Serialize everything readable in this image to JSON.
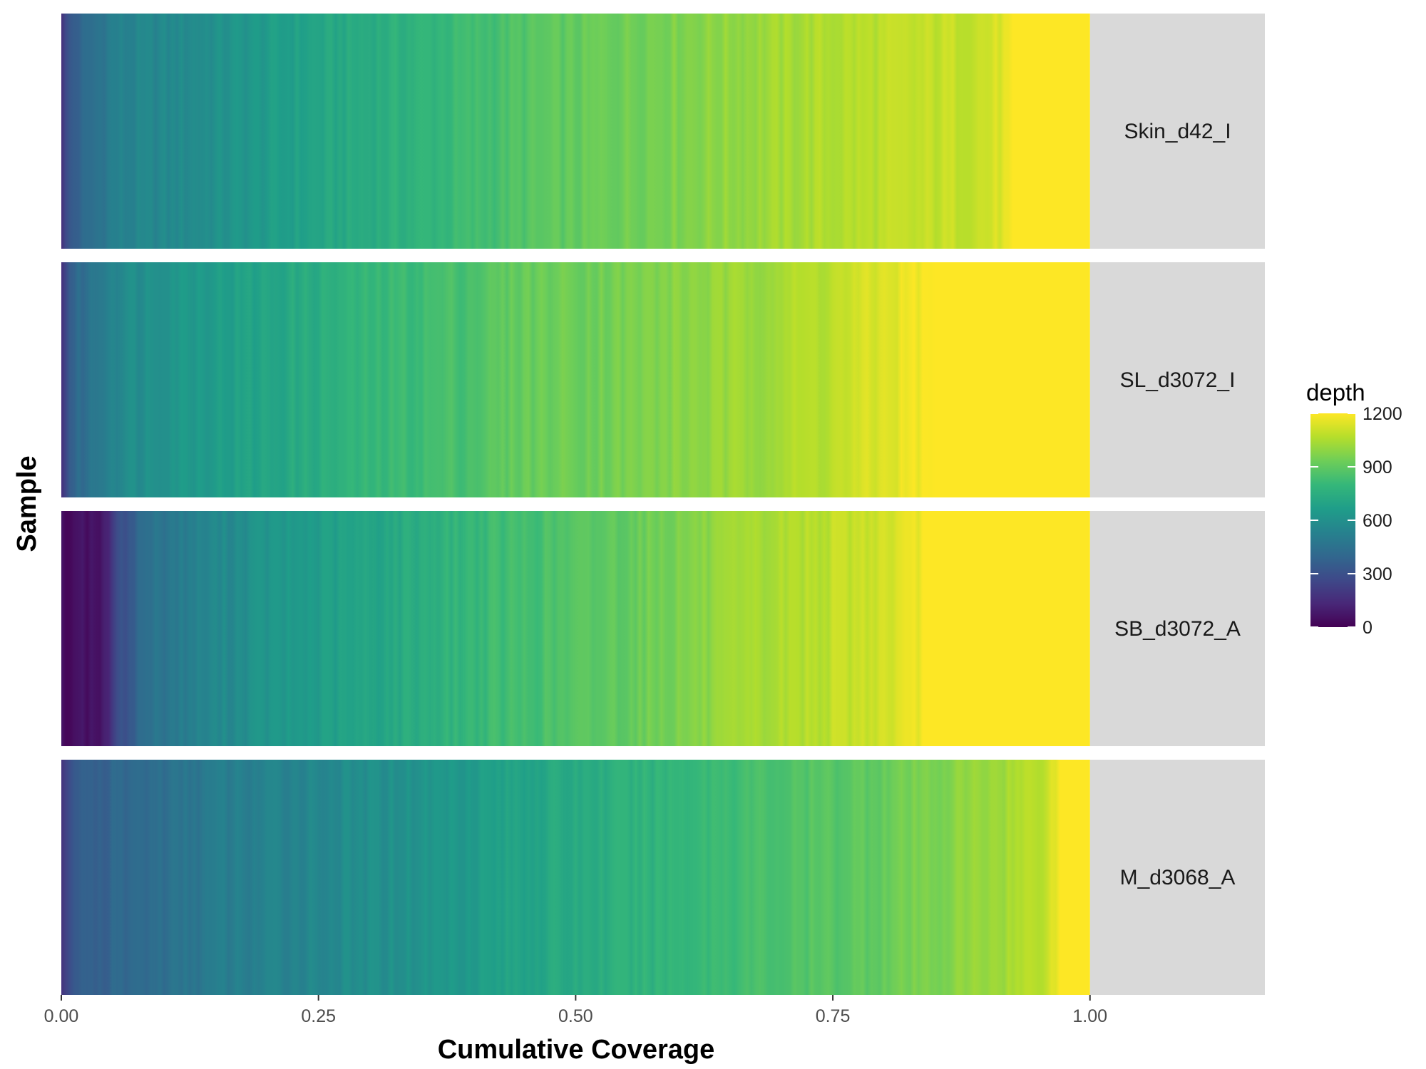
{
  "chart_data": {
    "type": "heatmap",
    "xlabel": "Cumulative Coverage",
    "ylabel": "Sample",
    "xlim": [
      0,
      1.17
    ],
    "x_ticks": [
      "0.00",
      "0.25",
      "0.50",
      "0.75",
      "1.00"
    ],
    "x_tick_values": [
      0,
      0.25,
      0.5,
      0.75,
      1.0
    ],
    "legend": {
      "title": "depth",
      "placement": "right",
      "range": [
        0,
        1200
      ],
      "ticks": [
        "0",
        "300",
        "600",
        "900",
        "1200"
      ],
      "tick_values": [
        0,
        300,
        600,
        900,
        1200
      ],
      "palette": [
        "#440154",
        "#482878",
        "#3e4989",
        "#31688e",
        "#26828e",
        "#1f9e89",
        "#35b779",
        "#6ece58",
        "#b5de2b",
        "#fde725"
      ]
    },
    "series": [
      {
        "name": "Skin_d42_I",
        "profile": [
          [
            0,
            180
          ],
          [
            0.01,
            350
          ],
          [
            0.05,
            520
          ],
          [
            0.1,
            560
          ],
          [
            0.15,
            600
          ],
          [
            0.25,
            700
          ],
          [
            0.35,
            780
          ],
          [
            0.45,
            870
          ],
          [
            0.55,
            940
          ],
          [
            0.65,
            1000
          ],
          [
            0.75,
            1060
          ],
          [
            0.85,
            1090
          ],
          [
            0.9,
            1110
          ],
          [
            0.92,
            1150
          ],
          [
            0.935,
            1200
          ],
          [
            1.0,
            1200
          ]
        ]
      },
      {
        "name": "SL_d3072_I",
        "profile": [
          [
            0,
            180
          ],
          [
            0.01,
            380
          ],
          [
            0.05,
            560
          ],
          [
            0.1,
            630
          ],
          [
            0.2,
            700
          ],
          [
            0.3,
            790
          ],
          [
            0.4,
            860
          ],
          [
            0.45,
            920
          ],
          [
            0.55,
            950
          ],
          [
            0.65,
            1010
          ],
          [
            0.75,
            1080
          ],
          [
            0.8,
            1140
          ],
          [
            0.85,
            1200
          ],
          [
            1.0,
            1200
          ]
        ]
      },
      {
        "name": "SB_d3072_A",
        "profile": [
          [
            0,
            40
          ],
          [
            0.045,
            80
          ],
          [
            0.05,
            230
          ],
          [
            0.08,
            440
          ],
          [
            0.15,
            560
          ],
          [
            0.2,
            620
          ],
          [
            0.3,
            700
          ],
          [
            0.4,
            800
          ],
          [
            0.5,
            870
          ],
          [
            0.6,
            960
          ],
          [
            0.7,
            1050
          ],
          [
            0.8,
            1120
          ],
          [
            0.835,
            1160
          ],
          [
            0.84,
            1200
          ],
          [
            1.0,
            1200
          ]
        ]
      },
      {
        "name": "M_d3068_A",
        "profile": [
          [
            0,
            180
          ],
          [
            0.01,
            330
          ],
          [
            0.05,
            390
          ],
          [
            0.1,
            440
          ],
          [
            0.15,
            500
          ],
          [
            0.25,
            560
          ],
          [
            0.35,
            620
          ],
          [
            0.45,
            700
          ],
          [
            0.55,
            760
          ],
          [
            0.65,
            830
          ],
          [
            0.75,
            880
          ],
          [
            0.85,
            960
          ],
          [
            0.92,
            1040
          ],
          [
            0.95,
            1080
          ],
          [
            0.965,
            1140
          ],
          [
            0.97,
            1200
          ],
          [
            1.0,
            1200
          ]
        ]
      }
    ]
  }
}
